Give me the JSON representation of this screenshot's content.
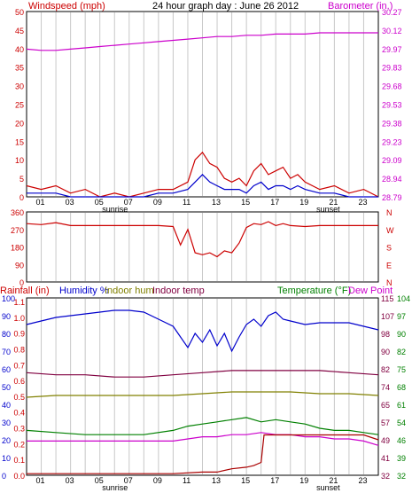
{
  "header": {
    "left_title": "Windspeed (mph)",
    "center_title": "24 hour graph day : June 26 2012",
    "right_title": "Barometer (in.)"
  },
  "colors": {
    "red": "#cc0000",
    "blue": "#0000cc",
    "magenta": "#cc00cc",
    "olive": "#808000",
    "green": "#008000",
    "maroon": "#800040",
    "dark_red": "#aa0000",
    "grid": "#c8c8c8"
  },
  "x_axis": {
    "ticks": [
      "01",
      "03",
      "05",
      "07",
      "09",
      "11",
      "13",
      "15",
      "17",
      "19",
      "21",
      "23"
    ],
    "sunrise_label": "sunrise",
    "sunset_label": "sunset"
  },
  "chart_data": [
    {
      "type": "line",
      "x_domain_hours": [
        0,
        24
      ],
      "ylabel_left": "Windspeed (mph)",
      "ylabel_right": "Barometer (in.)",
      "ylim_left": [
        0,
        50
      ],
      "ylim_right": [
        28.79,
        30.27
      ],
      "y_ticks_left": [
        "50",
        "45",
        "40",
        "35",
        "30",
        "25",
        "20",
        "15",
        "10",
        "5",
        "0"
      ],
      "y_ticks_right": [
        "30.27",
        "30.12",
        "29.97",
        "29.83",
        "29.68",
        "29.53",
        "29.38",
        "29.23",
        "29.09",
        "28.94",
        "28.79"
      ],
      "grid": "vertical",
      "series": [
        {
          "name": "Windspeed (mph)",
          "color": "#cc0000",
          "axis": "left",
          "x": [
            0,
            1,
            2,
            3,
            4,
            5,
            6,
            7,
            8,
            9,
            10,
            11,
            11.5,
            12,
            12.5,
            13,
            13.5,
            14,
            14.5,
            15,
            15.5,
            16,
            16.5,
            17,
            17.5,
            18,
            18.5,
            19,
            20,
            21,
            22,
            23,
            24
          ],
          "y": [
            3,
            2,
            3,
            1,
            2,
            0,
            1,
            0,
            1,
            2,
            2,
            4,
            10,
            12,
            9,
            8,
            5,
            4,
            5,
            3,
            7,
            9,
            6,
            7,
            8,
            5,
            6,
            4,
            2,
            3,
            1,
            2,
            0
          ]
        },
        {
          "name": "Wind gust",
          "color": "#0000cc",
          "axis": "left",
          "x": [
            0,
            1,
            2,
            3,
            4,
            5,
            6,
            7,
            8,
            9,
            10,
            11,
            11.5,
            12,
            12.5,
            13,
            13.5,
            14,
            14.5,
            15,
            15.5,
            16,
            16.5,
            17,
            17.5,
            18,
            18.5,
            19,
            20,
            21,
            22,
            23,
            24
          ],
          "y": [
            1,
            1,
            1,
            0,
            0,
            0,
            0,
            0,
            0,
            1,
            1,
            2,
            4,
            6,
            4,
            3,
            2,
            2,
            2,
            1,
            3,
            4,
            2,
            3,
            3,
            2,
            3,
            2,
            1,
            1,
            0,
            0,
            0
          ]
        },
        {
          "name": "Barometer (in.)",
          "color": "#cc00cc",
          "axis": "right",
          "x": [
            0,
            1,
            2,
            3,
            4,
            5,
            6,
            7,
            8,
            9,
            10,
            11,
            12,
            13,
            14,
            15,
            16,
            17,
            18,
            19,
            20,
            21,
            22,
            23,
            24
          ],
          "y": [
            29.97,
            29.96,
            29.96,
            29.97,
            29.98,
            29.99,
            30.0,
            30.01,
            30.02,
            30.03,
            30.04,
            30.05,
            30.06,
            30.07,
            30.07,
            30.08,
            30.08,
            30.09,
            30.09,
            30.09,
            30.1,
            30.1,
            30.1,
            30.1,
            30.1
          ]
        }
      ]
    },
    {
      "type": "line",
      "x_domain_hours": [
        0,
        24
      ],
      "ylabel_left": "",
      "ylim_left": [
        0,
        360
      ],
      "y_ticks_left": [
        "360",
        "270",
        "180",
        "90",
        "0"
      ],
      "y_ticks_right": [
        "N",
        "W",
        "S",
        "E",
        "N"
      ],
      "series": [
        {
          "name": "Wind direction",
          "color": "#cc0000",
          "x": [
            0,
            1,
            2,
            3,
            4,
            5,
            6,
            7,
            8,
            9,
            10,
            10.5,
            11,
            11.5,
            12,
            12.5,
            13,
            13.5,
            14,
            14.5,
            15,
            15.5,
            16,
            16.5,
            17,
            17.5,
            18,
            19,
            20,
            21,
            22,
            23,
            24
          ],
          "y": [
            300,
            295,
            305,
            290,
            290,
            290,
            290,
            290,
            290,
            290,
            285,
            190,
            270,
            150,
            140,
            150,
            130,
            160,
            150,
            200,
            280,
            300,
            295,
            310,
            290,
            300,
            290,
            285,
            290,
            290,
            290,
            290,
            290
          ]
        }
      ]
    },
    {
      "type": "line",
      "x_domain_hours": [
        0,
        24
      ],
      "header_left": "Rainfall (in)",
      "header_humidity": "Humidity %",
      "header_indoor_hum": "Indoor hum",
      "header_indoor_temp": "Indoor temp",
      "header_temperature": "Temperature (°F)",
      "header_dew_point": "Dew Point",
      "y_ticks_left_outer": [
        "100",
        "90",
        "80",
        "70",
        "60",
        "50",
        "40",
        "30",
        "20",
        "10",
        "0"
      ],
      "y_ticks_left_inner": [
        "1.1",
        "1.0",
        "0.9",
        "0.8",
        "0.7",
        "0.6",
        "0.5",
        "0.4",
        "0.3",
        "0.2",
        "0.1",
        "0.0"
      ],
      "y_ticks_right_inner": [
        "115",
        "107",
        "98",
        "90",
        "82",
        "74",
        "65",
        "57",
        "49",
        "41",
        "32"
      ],
      "y_ticks_right_outer": [
        "104",
        "97",
        "90",
        "82",
        "75",
        "68",
        "61",
        "54",
        "46",
        "39",
        "32"
      ],
      "ylim_percent": [
        0,
        100
      ],
      "ylim_rain": [
        0,
        1.1
      ],
      "ylim_temp": [
        32,
        115
      ],
      "series": [
        {
          "name": "Humidity %",
          "color": "#0000cc",
          "axis": "percent",
          "x": [
            0,
            1,
            2,
            3,
            4,
            5,
            6,
            7,
            8,
            9,
            10,
            10.5,
            11,
            11.5,
            12,
            12.5,
            13,
            13.5,
            14,
            14.5,
            15,
            15.5,
            16,
            16.5,
            17,
            17.5,
            18,
            19,
            20,
            21,
            22,
            23,
            24
          ],
          "y": [
            85,
            87,
            89,
            90,
            91,
            92,
            93,
            93,
            92,
            88,
            84,
            78,
            72,
            80,
            75,
            82,
            73,
            80,
            70,
            78,
            85,
            88,
            84,
            90,
            92,
            88,
            87,
            85,
            86,
            86,
            86,
            84,
            82
          ]
        },
        {
          "name": "Indoor hum",
          "color": "#808000",
          "axis": "percent",
          "x": [
            0,
            2,
            4,
            6,
            8,
            10,
            12,
            14,
            16,
            18,
            20,
            22,
            24
          ],
          "y": [
            44,
            45,
            45,
            45,
            45,
            45,
            46,
            47,
            47,
            47,
            46,
            46,
            45
          ]
        },
        {
          "name": "Indoor temp",
          "color": "#800040",
          "axis": "temp",
          "x": [
            0,
            2,
            4,
            6,
            8,
            10,
            12,
            14,
            16,
            18,
            20,
            22,
            24
          ],
          "y": [
            80,
            79,
            79,
            78,
            78,
            79,
            80,
            81,
            81,
            81,
            81,
            80,
            79
          ]
        },
        {
          "name": "Temperature (°F)",
          "color": "#008000",
          "axis": "temp",
          "x": [
            0,
            2,
            4,
            6,
            8,
            10,
            11,
            12,
            13,
            14,
            15,
            16,
            17,
            18,
            19,
            20,
            21,
            22,
            23,
            24
          ],
          "y": [
            53,
            52,
            51,
            51,
            51,
            53,
            55,
            56,
            57,
            58,
            59,
            57,
            58,
            57,
            56,
            54,
            53,
            53,
            52,
            51
          ]
        },
        {
          "name": "Dew Point",
          "color": "#cc00cc",
          "axis": "temp",
          "x": [
            0,
            2,
            4,
            6,
            8,
            10,
            11,
            12,
            13,
            14,
            15,
            16,
            17,
            18,
            19,
            20,
            21,
            22,
            23,
            24
          ],
          "y": [
            48,
            48,
            48,
            48,
            48,
            48,
            49,
            50,
            50,
            51,
            51,
            52,
            51,
            51,
            50,
            50,
            49,
            49,
            48,
            46
          ]
        },
        {
          "name": "Rainfall (in)",
          "color": "#aa0000",
          "axis": "rain",
          "x": [
            0,
            2,
            4,
            6,
            8,
            10,
            12,
            13,
            14,
            15,
            15.5,
            16,
            16.2,
            17,
            18,
            20,
            22,
            23,
            24
          ],
          "y": [
            0.01,
            0.01,
            0.01,
            0.01,
            0.01,
            0.01,
            0.02,
            0.02,
            0.04,
            0.05,
            0.06,
            0.08,
            0.25,
            0.25,
            0.25,
            0.25,
            0.25,
            0.25,
            0.22
          ]
        }
      ]
    }
  ]
}
